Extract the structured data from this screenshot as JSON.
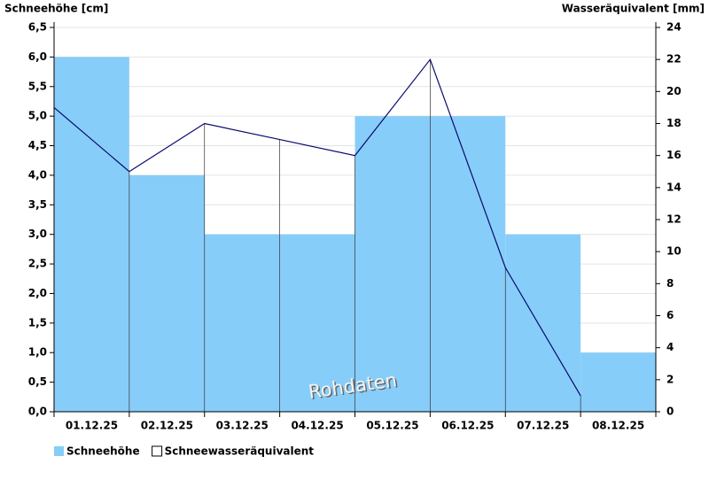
{
  "chart_data": {
    "type": "bar",
    "ylabel": "Schneehöhe [cm]",
    "y2label": "Wasseräquivalent [mm]",
    "watermark": "Rohdaten",
    "categories": [
      "01.12.25",
      "02.12.25",
      "03.12.25",
      "04.12.25",
      "05.12.25",
      "06.12.25",
      "07.12.25",
      "08.12.25"
    ],
    "series": [
      {
        "name": "Schneehöhe",
        "type": "bar",
        "color": "#87cdf9",
        "values": [
          6,
          4,
          3,
          3,
          5,
          5,
          3,
          1
        ]
      },
      {
        "name": "Schneewasseräquivalent",
        "type": "line",
        "axis": "y2",
        "color": "#0a0a6e",
        "values": [
          19,
          15,
          18,
          17,
          16,
          22,
          9,
          1
        ]
      }
    ],
    "ylim": [
      0,
      6.5
    ],
    "yticks": [
      {
        "value": 0,
        "label": "0,0"
      },
      {
        "value": 0.5,
        "label": "0,5"
      },
      {
        "value": 1,
        "label": "1,0"
      },
      {
        "value": 1.5,
        "label": "1,5"
      },
      {
        "value": 2,
        "label": "2,0"
      },
      {
        "value": 2.5,
        "label": "2,5"
      },
      {
        "value": 3,
        "label": "3,0"
      },
      {
        "value": 3.5,
        "label": "3,5"
      },
      {
        "value": 4,
        "label": "4,0"
      },
      {
        "value": 4.5,
        "label": "4,5"
      },
      {
        "value": 5,
        "label": "5,0"
      },
      {
        "value": 5.5,
        "label": "5,5"
      },
      {
        "value": 6,
        "label": "6,0"
      },
      {
        "value": 6.5,
        "label": "6,5"
      }
    ],
    "y2lim": [
      0,
      24
    ],
    "y2ticks": [
      0,
      2,
      4,
      6,
      8,
      10,
      12,
      14,
      16,
      18,
      20,
      22,
      24
    ],
    "grid": true
  }
}
